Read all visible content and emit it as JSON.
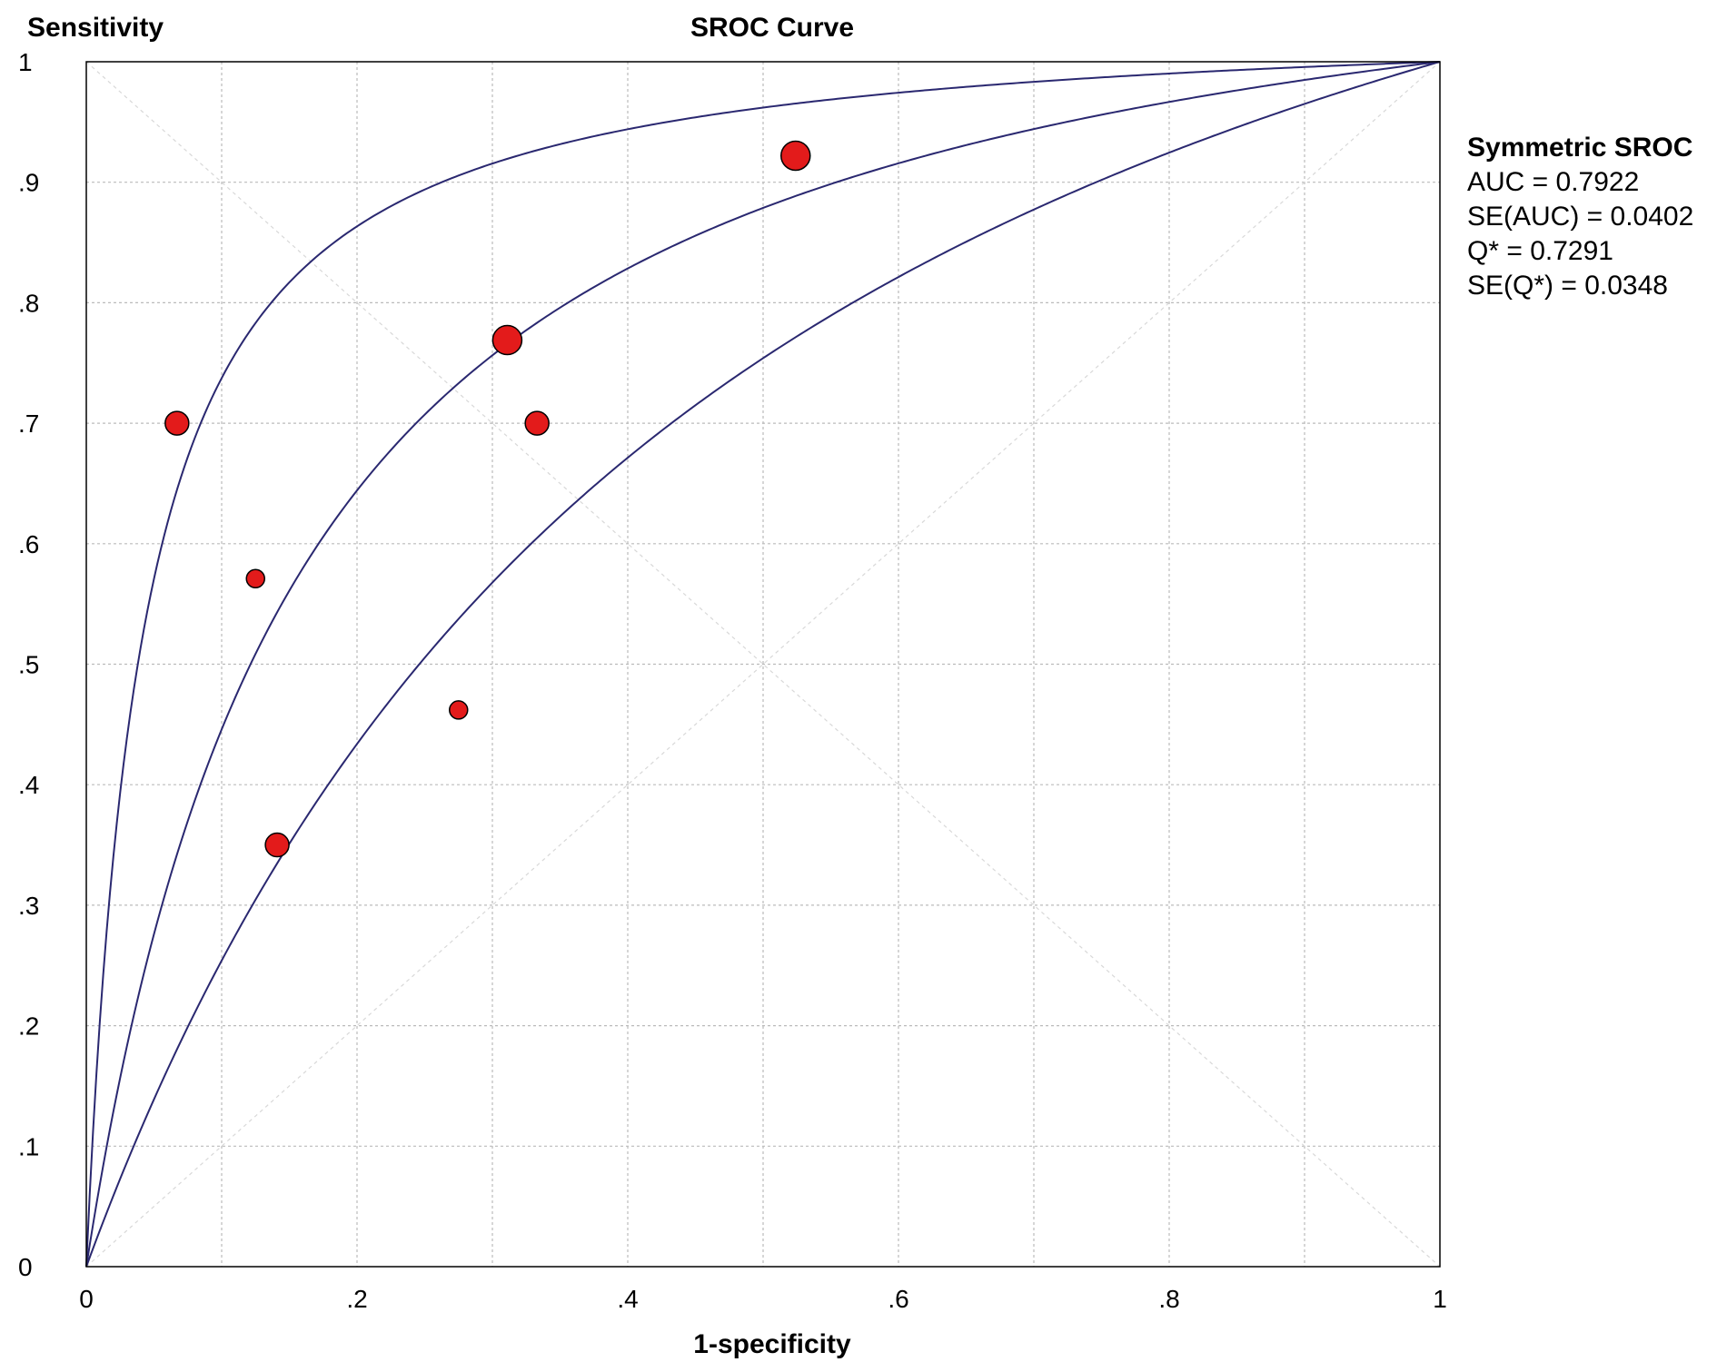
{
  "chart_data": {
    "type": "scatter",
    "title": "SROC Curve",
    "xlabel": "1-specificity",
    "ylabel": "Sensitivity",
    "xlim": [
      0,
      1
    ],
    "ylim": [
      0,
      1
    ],
    "grid": true,
    "x_ticks": [
      0,
      0.1,
      0.2,
      0.3,
      0.4,
      0.5,
      0.6,
      0.7,
      0.8,
      0.9,
      1
    ],
    "x_tick_labels": [
      "0",
      ".2",
      ".4",
      ".6",
      ".8",
      "1"
    ],
    "x_tick_label_values": [
      0,
      0.2,
      0.4,
      0.6,
      0.8,
      1
    ],
    "y_ticks": [
      0,
      0.1,
      0.2,
      0.3,
      0.4,
      0.5,
      0.6,
      0.7,
      0.8,
      0.9,
      1
    ],
    "y_tick_labels": [
      "0",
      ".1",
      ".2",
      ".3",
      ".4",
      ".5",
      ".6",
      ".7",
      ".8",
      ".9",
      "1"
    ],
    "points": [
      {
        "x": 0.067,
        "y": 0.7,
        "weight": 2
      },
      {
        "x": 0.125,
        "y": 0.571,
        "weight": 1
      },
      {
        "x": 0.141,
        "y": 0.35,
        "weight": 2
      },
      {
        "x": 0.275,
        "y": 0.462,
        "weight": 1
      },
      {
        "x": 0.311,
        "y": 0.769,
        "weight": 3
      },
      {
        "x": 0.333,
        "y": 0.7,
        "weight": 2
      },
      {
        "x": 0.524,
        "y": 0.922,
        "weight": 3
      }
    ],
    "curves": [
      {
        "role": "upper",
        "D": 3.23
      },
      {
        "role": "sroc",
        "D": 1.98
      },
      {
        "role": "lower",
        "D": 1.12
      }
    ],
    "annotations": {
      "title": "Symmetric SROC",
      "lines": [
        "AUC = 0.7922",
        "SE(AUC) = 0.0402",
        "Q* = 0.7291",
        "SE(Q*) = 0.0348"
      ]
    },
    "colors": {
      "points": "#e31b1b",
      "curves": "#2a2870",
      "grid": "#bbbbbb"
    }
  }
}
